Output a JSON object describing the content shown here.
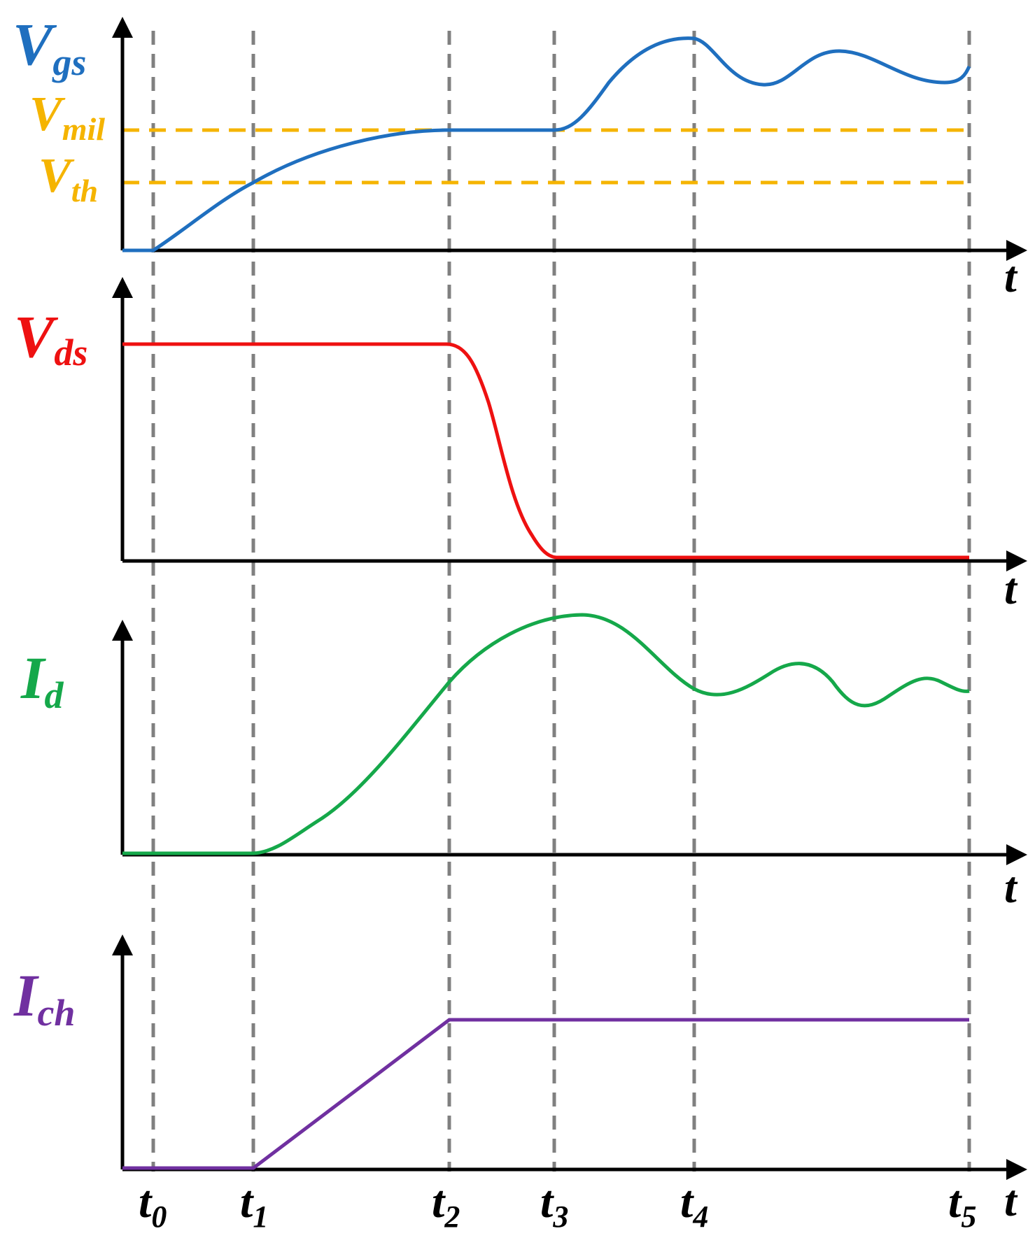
{
  "diagram": {
    "time_axis_symbol": "t",
    "time_markers": [
      {
        "base": "t",
        "sub": "0"
      },
      {
        "base": "t",
        "sub": "1"
      },
      {
        "base": "t",
        "sub": "2"
      },
      {
        "base": "t",
        "sub": "3"
      },
      {
        "base": "t",
        "sub": "4"
      },
      {
        "base": "t",
        "sub": "5"
      }
    ],
    "panels": [
      {
        "id": "vgs",
        "label": {
          "base": "V",
          "sub": "gs"
        },
        "color": "#1f6fbf",
        "reference_lines": [
          {
            "label": {
              "base": "V",
              "sub": "mil"
            },
            "color": "#f5b400"
          },
          {
            "label": {
              "base": "V",
              "sub": "th"
            },
            "color": "#f5b400"
          }
        ]
      },
      {
        "id": "vds",
        "label": {
          "base": "V",
          "sub": "ds"
        },
        "color": "#ee1111"
      },
      {
        "id": "id",
        "label": {
          "base": "I",
          "sub": "d"
        },
        "color": "#15a84a"
      },
      {
        "id": "ich",
        "label": {
          "base": "I",
          "sub": "ch"
        },
        "color": "#7030a0"
      }
    ],
    "axis_color": "#000000",
    "marker_line_color": "#808080"
  }
}
